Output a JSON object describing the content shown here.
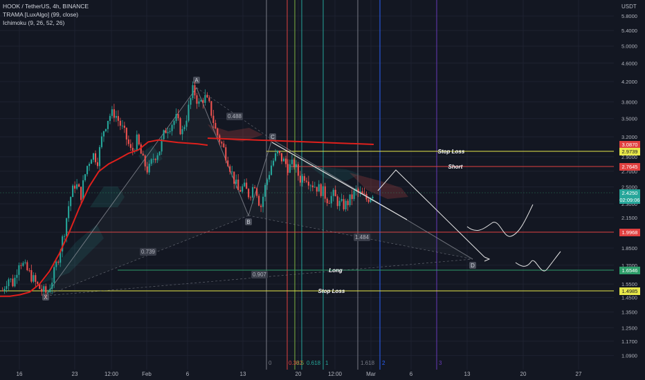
{
  "header": {
    "symbol_line": "HOOK / TetherUS, 4h, BINANCE",
    "indicator_1": "TRAMA [LuxAlgo] (99, close)",
    "indicator_2": "Ichimoku (9, 26, 52, 26)"
  },
  "axis": {
    "currency": "USDT",
    "price_ticks": [
      "5.8000",
      "5.4000",
      "5.0000",
      "4.6000",
      "4.2000",
      "3.8000",
      "3.5000",
      "3.2000",
      "2.9000",
      "2.7000",
      "2.5000",
      "2.3000",
      "2.1500",
      "2.0000",
      "1.8500",
      "1.7000",
      "1.5500",
      "1.4500",
      "1.3500",
      "1.2500",
      "1.1700",
      "1.0900"
    ],
    "time_ticks": [
      "16",
      "23",
      "12:00",
      "Feb",
      "6",
      "13",
      "20",
      "12:00",
      "Mar",
      "6",
      "13",
      "20",
      "27"
    ]
  },
  "colors": {
    "background": "#131722",
    "up": "#26a69a",
    "down": "#ef5350",
    "trama": "#e0201c",
    "level_yellow": "#e8e84a",
    "level_red": "#e04040",
    "level_green": "#2e9e6a"
  },
  "price_labels": {
    "tl_level": "3.0870",
    "stop_loss_short": "2.9739",
    "short": "2.7645",
    "current": "2.4250",
    "countdown": "02:09:06",
    "level_1": "1.9968",
    "long": "1.6546",
    "stop_loss_long": "1.4985"
  },
  "annotations": {
    "stop_loss_top": "Stop Loss",
    "short": "Short",
    "long": "Long",
    "stop_loss_bottom": "Stop Loss"
  },
  "pattern": {
    "points": [
      "X",
      "A",
      "B",
      "C",
      "D"
    ],
    "ratios": [
      "0.488",
      "0.739",
      "0.907",
      "1.484"
    ]
  },
  "fib_time": [
    "0",
    "0.382",
    "0.5",
    "0.618",
    "1",
    "1.618",
    "2",
    "3"
  ],
  "chart_data": {
    "type": "candlestick",
    "x_axis_ticks": [
      "16",
      "23",
      "12:00",
      "Feb",
      "6",
      "13",
      "20",
      "12:00",
      "Mar",
      "6",
      "13",
      "20",
      "27"
    ],
    "y_axis_ticks": [
      5.8,
      5.4,
      5.0,
      4.6,
      4.2,
      3.8,
      3.5,
      3.2,
      2.9,
      2.7,
      2.5,
      2.3,
      2.15,
      2.0,
      1.85,
      1.7,
      1.55,
      1.45,
      1.35,
      1.25,
      1.17,
      1.09
    ],
    "close_path": [
      1.5,
      1.6,
      1.55,
      1.75,
      1.68,
      1.62,
      1.55,
      1.5,
      1.48,
      1.6,
      1.78,
      2.0,
      2.35,
      2.55,
      2.4,
      2.75,
      2.95,
      2.85,
      3.3,
      3.55,
      3.6,
      3.4,
      3.2,
      2.95,
      3.15,
      2.85,
      2.7,
      2.9,
      3.0,
      3.3,
      3.4,
      3.5,
      3.25,
      3.6,
      4.05,
      3.75,
      3.9,
      3.7,
      3.3,
      3.1,
      2.9,
      2.65,
      2.45,
      2.5,
      2.4,
      2.55,
      2.25,
      2.55,
      2.8,
      2.95,
      2.85,
      2.75,
      2.8,
      2.6,
      2.65,
      2.55,
      2.5,
      2.45,
      2.35,
      2.4,
      2.3,
      2.28,
      2.35,
      2.45,
      2.4,
      2.35,
      2.43
    ],
    "trama_path": [
      1.46,
      1.46,
      1.47,
      1.49,
      1.55,
      1.65,
      1.8,
      2.0,
      2.25,
      2.5,
      2.7,
      2.8,
      2.87,
      2.95,
      3.0,
      3.12,
      3.15,
      3.13,
      3.11,
      3.1,
      3.09,
      3.07
    ],
    "levels": {
      "tl_level": 3.087,
      "stop_loss_short": 2.9739,
      "short": 2.7645,
      "current": 2.425,
      "level_1": 1.9968,
      "long": 1.6546,
      "stop_loss_long": 1.4985
    }
  }
}
